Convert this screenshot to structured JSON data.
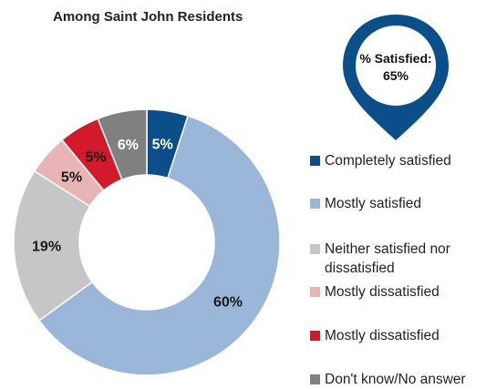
{
  "subtitle": "Among Saint John Residents",
  "callout": {
    "label": "% Satisfied:",
    "value": "65%"
  },
  "colors": {
    "completely_satisfied": "#0b4f8a",
    "mostly_satisfied": "#9ab6d8",
    "neither": "#c6c6c6",
    "mostly_dissatisfied_light": "#e8b4b6",
    "mostly_dissatisfied": "#d31a2a",
    "dont_know": "#808080",
    "pin": "#0b4f8a"
  },
  "chart_data": {
    "type": "pie",
    "subtitle": "Among Saint John Residents",
    "slices": [
      {
        "label": "Completely satisfied",
        "value": 5,
        "display": "5%",
        "color": "#0b4f8a",
        "text_color": "#ffffff"
      },
      {
        "label": "Mostly satisfied",
        "value": 60,
        "display": "60%",
        "color": "#9ab6d8",
        "text_color": "#1a1a1a"
      },
      {
        "label": "Neither satisfied nor dissatisfied",
        "value": 19,
        "display": "19%",
        "color": "#c6c6c6",
        "text_color": "#1a1a1a"
      },
      {
        "label": "Mostly dissatisfied",
        "value": 5,
        "display": "5%",
        "color": "#e8b4b6",
        "text_color": "#1a1a1a"
      },
      {
        "label": "Mostly dissatisfied",
        "value": 5,
        "display": "5%",
        "color": "#d31a2a",
        "text_color": "#1a1a1a"
      },
      {
        "label": "Don't know/No answer",
        "value": 6,
        "display": "6%",
        "color": "#808080",
        "text_color": "#ffffff"
      }
    ],
    "legend_placement": "right"
  },
  "legend": [
    {
      "label": "Completely satisfied",
      "color": "#0b4f8a"
    },
    {
      "label": "Mostly satisfied",
      "color": "#9ab6d8"
    },
    {
      "label": "Neither satisfied nor dissatisfied",
      "color": "#c6c6c6"
    },
    {
      "label": "Mostly dissatisfied",
      "color": "#e8b4b6"
    },
    {
      "label": "Mostly dissatisfied",
      "color": "#d31a2a"
    },
    {
      "label": "Don't know/No answer",
      "color": "#808080"
    }
  ]
}
